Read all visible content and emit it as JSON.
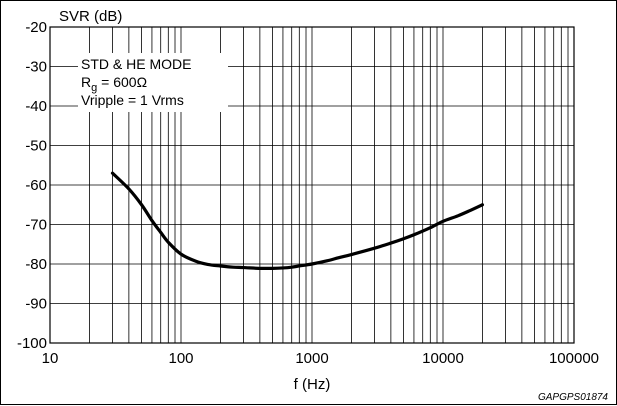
{
  "chart_data": {
    "type": "line",
    "title": "",
    "ylabel": "SVR (dB)",
    "xlabel": "f (Hz)",
    "xscale": "log",
    "xlim": [
      10,
      100000
    ],
    "ylim": [
      -100,
      -20
    ],
    "grid": true,
    "x_tick_labels": [
      "10",
      "100",
      "1000",
      "10000",
      "100000"
    ],
    "y_tick_labels": [
      "-20",
      "-30",
      "-40",
      "-50",
      "-60",
      "-70",
      "-80",
      "-90",
      "-100"
    ],
    "annotation": {
      "line1": "STD & HE MODE",
      "line2_prefix": "R",
      "line2_sub": "g",
      "line2_suffix": " = 600Ω",
      "line3": "Vripple = 1 Vrms",
      "placement": "top-left"
    },
    "figure_code": "GAPGPS01874",
    "series": [
      {
        "x": [
          30,
          40,
          50,
          60,
          70,
          80,
          100,
          130,
          160,
          200,
          250,
          300,
          400,
          500,
          600,
          700,
          800,
          1000,
          1300,
          1600,
          2000,
          3000,
          4000,
          5000,
          6000,
          8000,
          10000,
          13000,
          16000,
          20000
        ],
        "y": [
          -57,
          -61,
          -65,
          -69,
          -72,
          -74.5,
          -77.5,
          -79.3,
          -80.1,
          -80.5,
          -80.8,
          -80.9,
          -81.1,
          -81.1,
          -81,
          -80.8,
          -80.5,
          -80,
          -79.2,
          -78.4,
          -77.6,
          -76,
          -74.7,
          -73.6,
          -72.6,
          -70.8,
          -69.2,
          -67.8,
          -66.5,
          -65
        ]
      }
    ]
  }
}
